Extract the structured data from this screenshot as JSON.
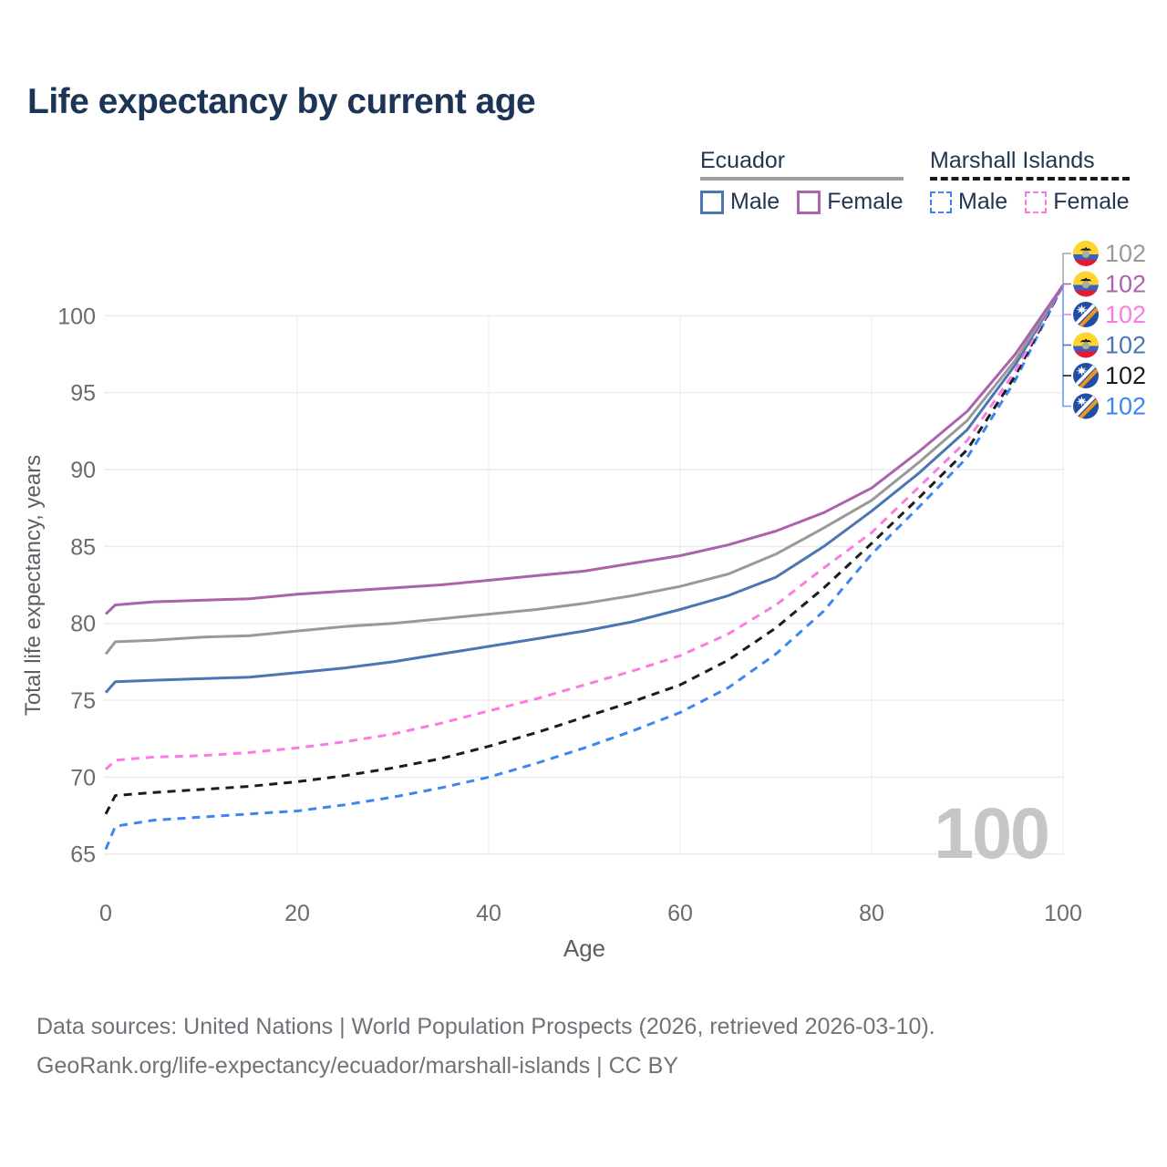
{
  "page": {
    "title": "Life expectancy by current age",
    "watermark_age": "100"
  },
  "legend": {
    "groups": [
      {
        "label": "Ecuador",
        "underline_style": "solid",
        "underline_color": "#9e9e9e",
        "items": [
          {
            "label": "Male",
            "color": "#4a77b4",
            "dash": "solid"
          },
          {
            "label": "Female",
            "color": "#ab63ab",
            "dash": "solid"
          }
        ]
      },
      {
        "label": "Marshall Islands",
        "underline_style": "dashed",
        "underline_color": "#1a1a1a",
        "items": [
          {
            "label": "Male",
            "color": "#3d85f0",
            "dash": "dashed"
          },
          {
            "label": "Female",
            "color": "#fb7ae3",
            "dash": "dashed"
          }
        ]
      }
    ]
  },
  "footer": {
    "line1": "Data sources: United Nations | World Population Prospects (2026, retrieved 2026-03-10).",
    "line2": "GeoRank.org/life-expectancy/ecuador/marshall-islands | CC BY"
  },
  "chart_data": {
    "type": "line",
    "title": "Life expectancy by current age",
    "xlabel": "Age",
    "ylabel": "Total life expectancy, years",
    "x_ticks": [
      0,
      20,
      40,
      60,
      80,
      100
    ],
    "y_ticks": [
      65,
      70,
      75,
      80,
      85,
      90,
      95,
      100
    ],
    "xlim": [
      0,
      100
    ],
    "ylim": [
      63,
      104.5
    ],
    "grid": "on",
    "legend_position": "top-right",
    "ages": [
      0,
      1,
      5,
      10,
      15,
      20,
      25,
      30,
      35,
      40,
      45,
      50,
      55,
      60,
      65,
      70,
      75,
      80,
      85,
      90,
      95,
      100
    ],
    "series": [
      {
        "id": "marshall-male",
        "country": "Marshall Islands",
        "sex": "Male",
        "color": "#3d85f0",
        "dash": "dashed",
        "flag": "marshall",
        "end_label": "102",
        "values": [
          65.3,
          66.8,
          67.2,
          67.4,
          67.6,
          67.8,
          68.2,
          68.7,
          69.3,
          70.0,
          70.9,
          71.9,
          73.0,
          74.2,
          75.8,
          78.0,
          80.8,
          84.5,
          87.6,
          90.8,
          95.8,
          102
        ]
      },
      {
        "id": "marshall-total",
        "country": "Marshall Islands",
        "sex": "Both",
        "color": "#1c1c1c",
        "dash": "dashed",
        "flag": "marshall",
        "end_label": "102",
        "values": [
          67.6,
          68.8,
          69.0,
          69.2,
          69.4,
          69.7,
          70.1,
          70.6,
          71.2,
          72.0,
          72.9,
          73.9,
          74.9,
          76.0,
          77.6,
          79.7,
          82.3,
          85.2,
          88.2,
          91.3,
          96.1,
          102
        ]
      },
      {
        "id": "marshall-female",
        "country": "Marshall Islands",
        "sex": "Female",
        "color": "#fb7ae3",
        "dash": "dashed",
        "flag": "marshall",
        "end_label": "102",
        "values": [
          70.5,
          71.1,
          71.3,
          71.4,
          71.6,
          71.9,
          72.3,
          72.8,
          73.5,
          74.3,
          75.1,
          76.0,
          76.9,
          77.9,
          79.3,
          81.2,
          83.6,
          85.9,
          88.9,
          91.9,
          96.4,
          102
        ]
      },
      {
        "id": "ecuador-male",
        "country": "Ecuador",
        "sex": "Male",
        "color": "#4a77b4",
        "dash": "solid",
        "flag": "ecuador",
        "end_label": "102",
        "values": [
          75.5,
          76.2,
          76.3,
          76.4,
          76.5,
          76.8,
          77.1,
          77.5,
          78.0,
          78.5,
          79.0,
          79.5,
          80.1,
          80.9,
          81.8,
          83.0,
          85.0,
          87.3,
          89.8,
          92.6,
          96.8,
          102
        ]
      },
      {
        "id": "ecuador-total",
        "country": "Ecuador",
        "sex": "Both",
        "color": "#999999",
        "dash": "solid",
        "flag": "ecuador",
        "end_label": "102",
        "values": [
          78.0,
          78.8,
          78.9,
          79.1,
          79.2,
          79.5,
          79.8,
          80.0,
          80.3,
          80.6,
          80.9,
          81.3,
          81.8,
          82.4,
          83.2,
          84.5,
          86.2,
          88.0,
          90.5,
          93.2,
          97.1,
          102
        ]
      },
      {
        "id": "ecuador-female",
        "country": "Ecuador",
        "sex": "Female",
        "color": "#ab63ab",
        "dash": "solid",
        "flag": "ecuador",
        "end_label": "102",
        "values": [
          80.6,
          81.2,
          81.4,
          81.5,
          81.6,
          81.9,
          82.1,
          82.3,
          82.5,
          82.8,
          83.1,
          83.4,
          83.9,
          84.4,
          85.1,
          86.0,
          87.2,
          88.8,
          91.2,
          93.8,
          97.5,
          102
        ]
      }
    ],
    "end_labels_top_to_bottom": [
      "ecuador-total",
      "ecuador-female",
      "marshall-female",
      "ecuador-male",
      "marshall-total",
      "marshall-male"
    ],
    "end_value_shared": "102"
  }
}
